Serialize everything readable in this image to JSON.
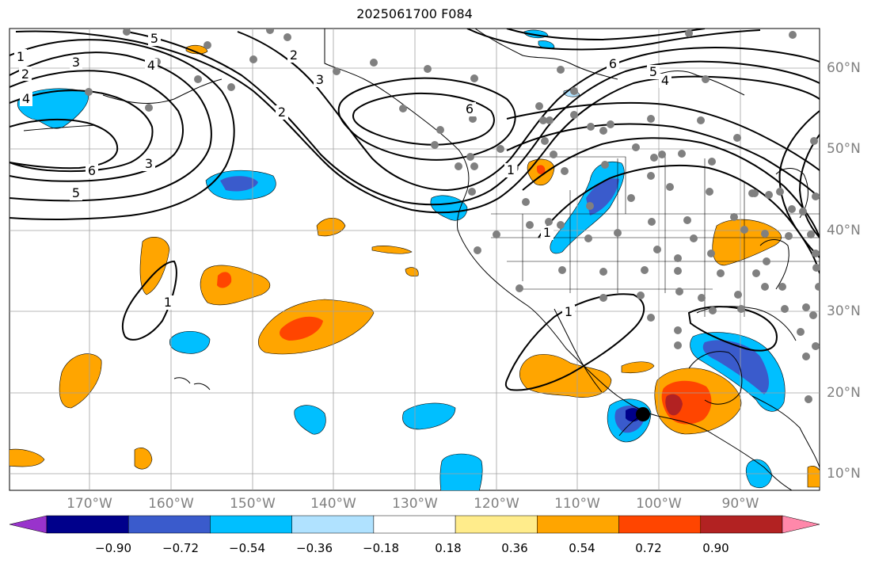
{
  "title": "2025061700 F084",
  "lon_labels": [
    "170°W",
    "160°W",
    "150°W",
    "140°W",
    "130°W",
    "120°W",
    "110°W",
    "100°W",
    "90°W"
  ],
  "lat_labels": [
    "60°N",
    "50°N",
    "40°N",
    "30°N",
    "20°N",
    "10°N"
  ],
  "colorbar": {
    "levels": [
      "−0.90",
      "−0.72",
      "−0.54",
      "−0.36",
      "−0.18",
      "0.18",
      "0.36",
      "0.54",
      "0.72",
      "0.90"
    ],
    "colors": [
      "#9933cc",
      "#00008b",
      "#3a5bcc",
      "#00bfff",
      "#b0e2ff",
      "#ffffff",
      "#ffec8b",
      "#ffa500",
      "#ff4500",
      "#b22222",
      "#ff88aa"
    ]
  },
  "contour_labels": [
    "1",
    "2",
    "3",
    "4",
    "5",
    "6",
    "2",
    "3",
    "4",
    "5",
    "6",
    "2",
    "3",
    "6",
    "5",
    "4",
    "1",
    "1",
    "1",
    "1",
    "6",
    "5",
    "4",
    "1"
  ],
  "map_features": {
    "coastline_color": "#000000",
    "grid_color": "#a0a0a0",
    "station_color": "#808080"
  }
}
